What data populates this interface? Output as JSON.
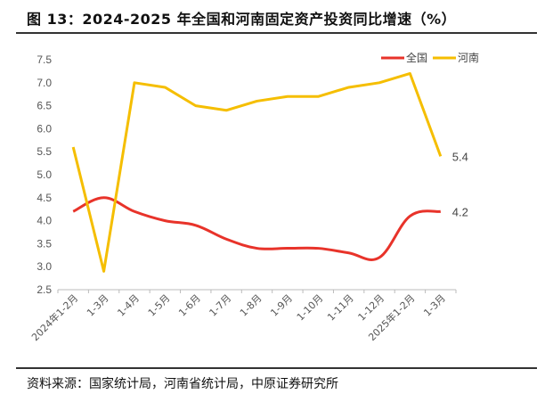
{
  "title": "图 13：2024-2025 年全国和河南固定资产投资同比增速（%）",
  "source": "资料来源：国家统计局，河南省统计局，中原证券研究所",
  "chart_data": {
    "type": "line",
    "title": "图 13：2024-2025 年全国和河南固定资产投资同比增速（%）",
    "categories": [
      "2024年1-2月",
      "1-3月",
      "1-4月",
      "1-5月",
      "1-6月",
      "1-7月",
      "1-8月",
      "1-9月",
      "1-10月",
      "1-11月",
      "1-12月",
      "2025年1-2月",
      "1-3月"
    ],
    "series": [
      {
        "name": "全国",
        "color": "#e8332a",
        "smooth": true,
        "values": [
          4.2,
          4.5,
          4.2,
          4.0,
          3.9,
          3.6,
          3.4,
          3.4,
          3.4,
          3.3,
          3.2,
          4.1,
          4.2
        ],
        "end_label": "4.2"
      },
      {
        "name": "河南",
        "color": "#f5be00",
        "smooth": false,
        "values": [
          5.6,
          2.9,
          7.0,
          6.9,
          6.5,
          6.4,
          6.6,
          6.7,
          6.7,
          6.9,
          7.0,
          7.2,
          5.4
        ],
        "end_label": "5.4"
      }
    ],
    "ylim": [
      2.5,
      7.5
    ],
    "yticks": [
      "2.5",
      "3.0",
      "3.5",
      "4.0",
      "4.5",
      "5.0",
      "5.5",
      "6.0",
      "6.5",
      "7.0",
      "7.5"
    ],
    "xlabel": "",
    "ylabel": "",
    "grid": false,
    "legend": "top-right"
  }
}
